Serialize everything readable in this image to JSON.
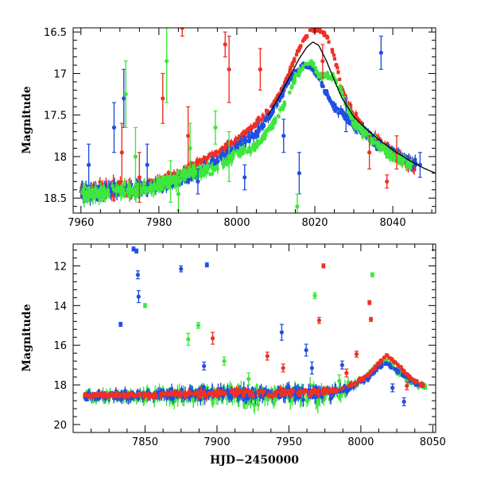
{
  "colors": {
    "red": "#ee3124",
    "blue": "#1f4fe0",
    "green": "#3ee63e",
    "model": "#000000"
  },
  "chart_data": [
    {
      "type": "scatter",
      "panel": "top",
      "xlabel": "",
      "ylabel": "Magnitude",
      "xlim": [
        7958,
        8051
      ],
      "ylim": [
        18.68,
        16.45
      ],
      "y_inverted": true,
      "xticks": [
        7960,
        7980,
        8000,
        8020,
        8040
      ],
      "yticks": [
        16.5,
        17,
        17.5,
        18,
        18.5
      ],
      "ytick_labels": [
        "16.5",
        "17",
        "17.5",
        "18",
        "18.5"
      ],
      "grid": false,
      "legend": "none",
      "series": [
        {
          "color": "red",
          "kind": "dense",
          "x": [
            7960,
            7965,
            7970,
            7975,
            7980,
            7985,
            7990,
            7995,
            8000,
            8005,
            8008,
            8011,
            8013,
            8015,
            8017,
            8019,
            8021,
            8023,
            8025,
            8027,
            8030,
            8033,
            8036,
            8040,
            8043,
            8046
          ],
          "y": [
            18.42,
            18.4,
            18.38,
            18.38,
            18.3,
            18.2,
            18.08,
            17.95,
            17.8,
            17.6,
            17.45,
            17.25,
            17.05,
            16.8,
            16.6,
            16.48,
            16.47,
            16.55,
            16.8,
            17.2,
            17.5,
            17.68,
            17.82,
            17.95,
            18.05,
            18.12
          ],
          "spread": [
            0.12,
            0.12,
            0.12,
            0.1,
            0.08,
            0.07,
            0.07,
            0.06,
            0.06,
            0.05,
            0.05,
            0.04,
            0.04,
            0.03,
            0.03,
            0.03,
            0.03,
            0.03,
            0.04,
            0.05,
            0.06,
            0.07,
            0.08,
            0.08,
            0.08,
            0.1
          ]
        },
        {
          "color": "blue",
          "kind": "dense",
          "x": [
            7960,
            7965,
            7970,
            7975,
            7980,
            7985,
            7990,
            7995,
            8000,
            8005,
            8010,
            8013,
            8015,
            8017,
            8019,
            8021,
            8023,
            8025,
            8027,
            8030,
            8033,
            8036,
            8040,
            8043,
            8046
          ],
          "y": [
            18.42,
            18.42,
            18.4,
            18.38,
            18.35,
            18.3,
            18.2,
            18.05,
            17.9,
            17.72,
            17.4,
            17.12,
            16.98,
            16.9,
            16.92,
            17.05,
            17.25,
            17.4,
            17.5,
            17.62,
            17.72,
            17.85,
            17.95,
            18.02,
            18.1
          ],
          "spread": [
            0.12,
            0.12,
            0.12,
            0.1,
            0.08,
            0.08,
            0.08,
            0.08,
            0.08,
            0.07,
            0.06,
            0.05,
            0.04,
            0.04,
            0.04,
            0.05,
            0.06,
            0.07,
            0.07,
            0.08,
            0.08,
            0.08,
            0.08,
            0.08,
            0.1
          ]
        },
        {
          "color": "green",
          "kind": "dense",
          "x": [
            7960,
            7970,
            7980,
            7988,
            7995,
            8000,
            8005,
            8010,
            8013,
            8015,
            8017,
            8019,
            8021,
            8023,
            8025,
            8027,
            8030,
            8035,
            8040,
            8045
          ],
          "y": [
            18.45,
            18.42,
            18.35,
            18.2,
            18.15,
            17.95,
            17.9,
            17.55,
            17.3,
            17.05,
            16.92,
            16.85,
            17.02,
            17.02,
            17.05,
            17.25,
            17.6,
            17.8,
            18.0,
            18.1
          ],
          "spread": [
            0.12,
            0.12,
            0.1,
            0.1,
            0.1,
            0.08,
            0.08,
            0.06,
            0.05,
            0.05,
            0.04,
            0.04,
            0.05,
            0.05,
            0.06,
            0.07,
            0.07,
            0.08,
            0.08,
            0.1
          ]
        },
        {
          "color": "red",
          "kind": "outliers",
          "x": [
            7970.5,
            7975,
            7981,
            7986,
            7987.5,
            7997,
            7998,
            8006,
            8022,
            8034,
            8038.5,
            8041
          ],
          "y": [
            17.95,
            18.25,
            17.3,
            16.45,
            17.75,
            16.65,
            16.95,
            16.95,
            16.85,
            17.95,
            18.3,
            17.95
          ],
          "err": [
            0.35,
            0.3,
            0.3,
            0.1,
            0.35,
            0.15,
            0.4,
            0.25,
            0.2,
            0.2,
            0.08,
            0.2
          ]
        },
        {
          "color": "blue",
          "kind": "outliers",
          "x": [
            7962,
            7968.5,
            7971,
            7977,
            7990,
            8002,
            8012,
            8016,
            8028,
            8037,
            8047
          ],
          "y": [
            18.1,
            17.65,
            17.3,
            18.1,
            18.3,
            18.25,
            17.75,
            18.2,
            17.5,
            16.75,
            18.1
          ],
          "err": [
            0.25,
            0.3,
            0.35,
            0.25,
            0.15,
            0.15,
            0.2,
            0.25,
            0.2,
            0.2,
            0.15
          ]
        },
        {
          "color": "green",
          "kind": "outliers",
          "x": [
            7971.5,
            7974,
            7982,
            7983,
            7985,
            7988,
            7994.5,
            7998,
            8015.5
          ],
          "y": [
            17.25,
            18.0,
            16.85,
            18.3,
            18.45,
            17.9,
            17.65,
            18.0,
            18.6
          ],
          "err": [
            0.4,
            0.35,
            0.5,
            0.25,
            0.2,
            0.3,
            0.2,
            0.3,
            0.15
          ]
        }
      ],
      "model_curve": {
        "color": "model",
        "x": [
          8008,
          8010,
          8012,
          8014,
          8016,
          8018,
          8019.5,
          8021,
          8023,
          8025,
          8027,
          8030,
          8033,
          8036,
          8040,
          8044,
          8048,
          8051
        ],
        "y": [
          17.5,
          17.35,
          17.18,
          17.0,
          16.82,
          16.68,
          16.62,
          16.66,
          16.85,
          17.08,
          17.3,
          17.52,
          17.66,
          17.78,
          17.92,
          18.04,
          18.14,
          18.2
        ]
      }
    },
    {
      "type": "scatter",
      "panel": "bottom",
      "xlabel": "HJD−2450000",
      "ylabel": "Magnitude",
      "xlim": [
        7800,
        8052
      ],
      "ylim": [
        20.4,
        10.9
      ],
      "y_inverted": true,
      "xticks": [
        7850,
        7900,
        7950,
        8000,
        8050
      ],
      "yticks": [
        12,
        14,
        16,
        18,
        20
      ],
      "ytick_labels": [
        "12",
        "14",
        "16",
        "18",
        "20"
      ],
      "grid": false,
      "legend": "none",
      "series": [
        {
          "color": "green",
          "kind": "dense",
          "x": [
            7808,
            7830,
            7850,
            7870,
            7890,
            7910,
            7930,
            7950,
            7970,
            7985,
            7995,
            8005,
            8012,
            8018,
            8025,
            8035,
            8045
          ],
          "y": [
            18.6,
            18.6,
            18.55,
            18.55,
            18.5,
            18.5,
            18.55,
            18.5,
            18.5,
            18.4,
            18.0,
            17.5,
            17.0,
            16.85,
            17.3,
            17.9,
            18.1
          ],
          "spread": [
            0.35,
            0.4,
            0.45,
            0.5,
            0.55,
            0.6,
            0.6,
            0.6,
            0.6,
            0.5,
            0.3,
            0.25,
            0.2,
            0.15,
            0.2,
            0.2,
            0.2
          ]
        },
        {
          "color": "blue",
          "kind": "dense",
          "x": [
            7808,
            7830,
            7850,
            7870,
            7890,
            7910,
            7930,
            7950,
            7970,
            7985,
            7995,
            8005,
            8012,
            8018,
            8025,
            8035,
            8045
          ],
          "y": [
            18.55,
            18.55,
            18.5,
            18.5,
            18.45,
            18.45,
            18.45,
            18.45,
            18.4,
            18.35,
            18.05,
            17.6,
            17.15,
            16.9,
            17.3,
            17.8,
            18.1
          ],
          "spread": [
            0.3,
            0.35,
            0.35,
            0.4,
            0.45,
            0.45,
            0.45,
            0.45,
            0.45,
            0.35,
            0.25,
            0.2,
            0.15,
            0.15,
            0.15,
            0.2,
            0.2
          ]
        },
        {
          "color": "red",
          "kind": "dense",
          "x": [
            7808,
            7830,
            7850,
            7870,
            7890,
            7910,
            7930,
            7950,
            7970,
            7982,
            7995,
            8005,
            8012,
            8018,
            8025,
            8035,
            8045
          ],
          "y": [
            18.55,
            18.5,
            18.5,
            18.45,
            18.45,
            18.4,
            18.4,
            18.4,
            18.35,
            18.3,
            17.95,
            17.5,
            16.95,
            16.5,
            16.95,
            17.7,
            18.1
          ],
          "spread": [
            0.15,
            0.2,
            0.2,
            0.2,
            0.25,
            0.25,
            0.25,
            0.25,
            0.25,
            0.2,
            0.15,
            0.12,
            0.1,
            0.08,
            0.1,
            0.12,
            0.15
          ]
        },
        {
          "color": "blue",
          "kind": "outliers",
          "x": [
            7833,
            7842,
            7844,
            7845,
            7845.5,
            7875,
            7893,
            7891,
            7945,
            7962,
            7966,
            7987,
            8022,
            8030
          ],
          "y": [
            14.95,
            11.15,
            11.25,
            12.45,
            13.55,
            12.15,
            11.95,
            17.05,
            15.35,
            16.25,
            17.15,
            17.0,
            18.15,
            18.85
          ],
          "err": [
            0.1,
            0.1,
            0.1,
            0.2,
            0.3,
            0.15,
            0.1,
            0.2,
            0.4,
            0.3,
            0.3,
            0.2,
            0.2,
            0.2
          ]
        },
        {
          "color": "green",
          "kind": "outliers",
          "x": [
            7850,
            7880,
            7887,
            7905,
            7922,
            7968,
            7985,
            8008
          ],
          "y": [
            14.0,
            15.7,
            15.0,
            16.8,
            17.7,
            13.5,
            17.8,
            12.45
          ],
          "err": [
            0.1,
            0.3,
            0.15,
            0.2,
            0.3,
            0.15,
            0.3,
            0.1
          ]
        },
        {
          "color": "red",
          "kind": "outliers",
          "x": [
            7897,
            7935,
            7946,
            7971,
            7974,
            7990,
            7997,
            8006,
            8007,
            8032
          ],
          "y": [
            15.65,
            16.55,
            17.15,
            14.75,
            12.0,
            17.4,
            16.45,
            13.85,
            14.7,
            18.05
          ],
          "err": [
            0.3,
            0.2,
            0.2,
            0.15,
            0.1,
            0.2,
            0.15,
            0.1,
            0.1,
            0.2
          ]
        }
      ]
    }
  ]
}
